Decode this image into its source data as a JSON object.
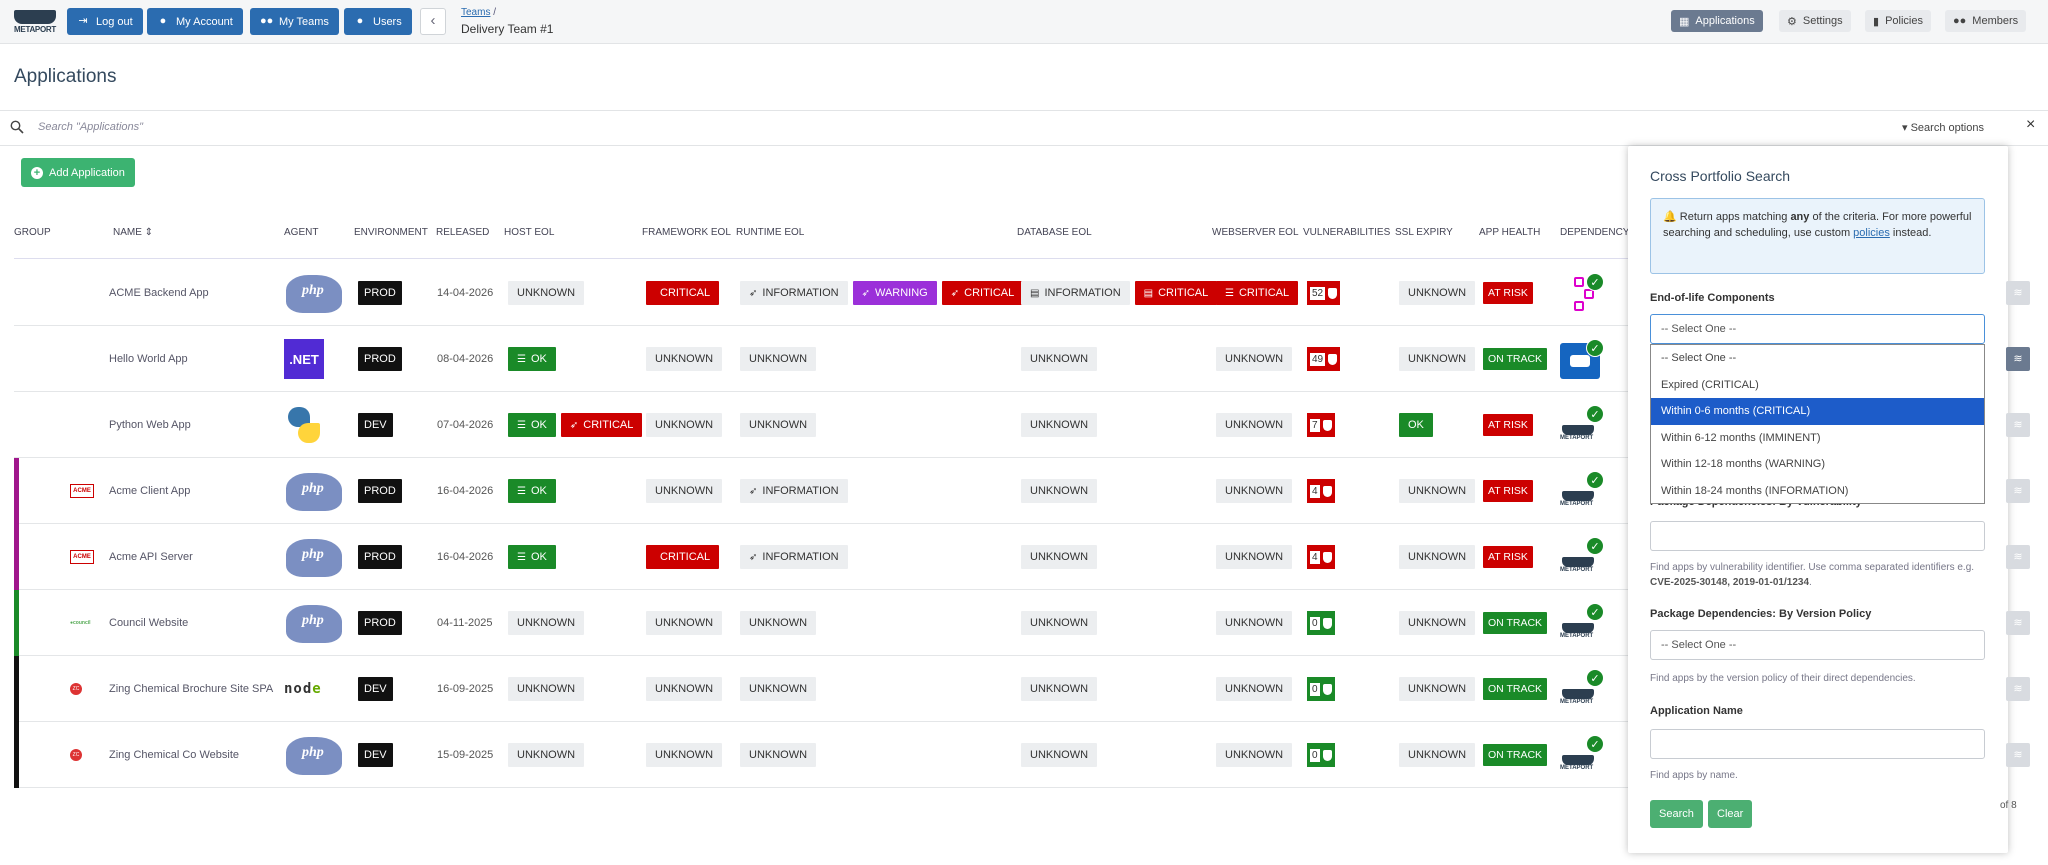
{
  "nav": {
    "logo_text": "METAPORT",
    "buttons": [
      {
        "label": "Log out",
        "icon": "logout-icon"
      },
      {
        "label": "My Account",
        "icon": "user-icon"
      },
      {
        "label": "My Teams",
        "icon": "users-icon"
      },
      {
        "label": "Users",
        "icon": "user-icon"
      }
    ],
    "breadcrumb_parent": "Teams",
    "breadcrumb_sep": " /",
    "breadcrumb_current": "Delivery Team #1",
    "tabs": [
      {
        "label": "Applications",
        "active": true
      },
      {
        "label": "Settings",
        "active": false
      },
      {
        "label": "Policies",
        "active": false
      },
      {
        "label": "Members",
        "active": false
      }
    ]
  },
  "page_title": "Applications",
  "search": {
    "placeholder": "Search \"Applications\"",
    "options_label": "Search options",
    "close": "×"
  },
  "add_button": "Add Application",
  "columns": [
    "GROUP",
    "NAME",
    "AGENT",
    "ENVIRONMENT",
    "RELEASED",
    "HOST EOL",
    "FRAMEWORK EOL",
    "RUNTIME EOL",
    "DATABASE EOL",
    "WEBSERVER EOL",
    "VULNERABILITIES",
    "SSL EXPIRY",
    "APP HEALTH",
    "DEPENDENCY S"
  ],
  "rows": [
    {
      "name": "ACME Backend App",
      "agent": "php",
      "env": "PROD",
      "released": "14-04-2026",
      "host": [
        [
          "UNKNOWN",
          "unk"
        ]
      ],
      "framework": [
        [
          "CRITICAL",
          "crit",
          "code"
        ]
      ],
      "runtime": [
        [
          "INFORMATION",
          "info",
          "rocket"
        ],
        [
          "WARNING",
          "warn",
          "rocket"
        ],
        [
          "CRITICAL",
          "crit",
          "rocket"
        ]
      ],
      "database": [
        [
          "INFORMATION",
          "info",
          "db"
        ],
        [
          "CRITICAL",
          "crit",
          "db"
        ]
      ],
      "webserver": [
        [
          "CRITICAL",
          "crit",
          "server"
        ]
      ],
      "vuln": "52",
      "vuln_color": "red",
      "ssl": "UNKNOWN",
      "health": "AT RISK",
      "group_color": "",
      "group": "",
      "dep": "pkg"
    },
    {
      "name": "Hello World App",
      "agent": "dotnet",
      "env": "PROD",
      "released": "08-04-2026",
      "host": [
        [
          "OK",
          "ok",
          "server"
        ]
      ],
      "framework": [
        [
          "UNKNOWN",
          "unk"
        ]
      ],
      "runtime": [
        [
          "UNKNOWN",
          "unk"
        ]
      ],
      "database": [
        [
          "UNKNOWN",
          "unk"
        ]
      ],
      "webserver": [
        [
          "UNKNOWN",
          "unk"
        ]
      ],
      "vuln": "49",
      "vuln_color": "red",
      "ssl": "UNKNOWN",
      "health": "ON TRACK",
      "group_color": "",
      "group": "",
      "dep": "bot"
    },
    {
      "name": "Python Web App",
      "agent": "python",
      "env": "DEV",
      "released": "07-04-2026",
      "host": [
        [
          "OK",
          "ok",
          "server"
        ],
        [
          "CRITICAL",
          "crit",
          "rocket"
        ]
      ],
      "framework": [
        [
          "UNKNOWN",
          "unk"
        ]
      ],
      "runtime": [
        [
          "UNKNOWN",
          "unk"
        ]
      ],
      "database": [
        [
          "UNKNOWN",
          "unk"
        ]
      ],
      "webserver": [
        [
          "UNKNOWN",
          "unk"
        ]
      ],
      "vuln": "7",
      "vuln_color": "red",
      "ssl": "OK",
      "health": "AT RISK",
      "group_color": "",
      "group": "",
      "dep": "meta"
    },
    {
      "name": "Acme Client App",
      "agent": "php",
      "env": "PROD",
      "released": "16-04-2026",
      "host": [
        [
          "OK",
          "ok",
          "server"
        ]
      ],
      "framework": [
        [
          "UNKNOWN",
          "unk"
        ]
      ],
      "runtime": [
        [
          "INFORMATION",
          "info",
          "rocket"
        ]
      ],
      "database": [
        [
          "UNKNOWN",
          "unk"
        ]
      ],
      "webserver": [
        [
          "UNKNOWN",
          "unk"
        ]
      ],
      "vuln": "4",
      "vuln_color": "red",
      "ssl": "UNKNOWN",
      "health": "AT RISK",
      "group_color": "#a0168c",
      "group": "ACME",
      "dep": "meta"
    },
    {
      "name": "Acme API Server",
      "agent": "php",
      "env": "PROD",
      "released": "16-04-2026",
      "host": [
        [
          "OK",
          "ok",
          "server"
        ]
      ],
      "framework": [
        [
          "CRITICAL",
          "crit",
          "code"
        ]
      ],
      "runtime": [
        [
          "INFORMATION",
          "info",
          "rocket"
        ]
      ],
      "database": [
        [
          "UNKNOWN",
          "unk"
        ]
      ],
      "webserver": [
        [
          "UNKNOWN",
          "unk"
        ]
      ],
      "vuln": "4",
      "vuln_color": "red",
      "ssl": "UNKNOWN",
      "health": "AT RISK",
      "group_color": "#a0168c",
      "group": "ACME",
      "dep": "meta"
    },
    {
      "name": "Council Website",
      "agent": "php",
      "env": "PROD",
      "released": "04-11-2025",
      "host": [
        [
          "UNKNOWN",
          "unk"
        ]
      ],
      "framework": [
        [
          "UNKNOWN",
          "unk"
        ]
      ],
      "runtime": [
        [
          "UNKNOWN",
          "unk"
        ]
      ],
      "database": [
        [
          "UNKNOWN",
          "unk"
        ]
      ],
      "webserver": [
        [
          "UNKNOWN",
          "unk"
        ]
      ],
      "vuln": "0",
      "vuln_color": "green",
      "ssl": "UNKNOWN",
      "health": "ON TRACK",
      "group_color": "#1a8a28",
      "group": "council",
      "dep": "meta"
    },
    {
      "name": "Zing Chemical Brochure Site SPA",
      "agent": "node",
      "env": "DEV",
      "released": "16-09-2025",
      "host": [
        [
          "UNKNOWN",
          "unk"
        ]
      ],
      "framework": [
        [
          "UNKNOWN",
          "unk"
        ]
      ],
      "runtime": [
        [
          "UNKNOWN",
          "unk"
        ]
      ],
      "database": [
        [
          "UNKNOWN",
          "unk"
        ]
      ],
      "webserver": [
        [
          "UNKNOWN",
          "unk"
        ]
      ],
      "vuln": "0",
      "vuln_color": "green",
      "ssl": "UNKNOWN",
      "health": "ON TRACK",
      "group_color": "#111111",
      "group": "zing",
      "dep": "meta"
    },
    {
      "name": "Zing Chemical Co Website",
      "agent": "php",
      "env": "DEV",
      "released": "15-09-2025",
      "host": [
        [
          "UNKNOWN",
          "unk"
        ]
      ],
      "framework": [
        [
          "UNKNOWN",
          "unk"
        ]
      ],
      "runtime": [
        [
          "UNKNOWN",
          "unk"
        ]
      ],
      "database": [
        [
          "UNKNOWN",
          "unk"
        ]
      ],
      "webserver": [
        [
          "UNKNOWN",
          "unk"
        ]
      ],
      "vuln": "0",
      "vuln_color": "green",
      "ssl": "UNKNOWN",
      "health": "ON TRACK",
      "group_color": "#111111",
      "group": "zing",
      "dep": "meta"
    }
  ],
  "panel": {
    "title": "Cross Portfolio Search",
    "info_pre": "Return apps matching ",
    "info_any": "any",
    "info_mid": " of the criteria. For more powerful searching and scheduling, use custom ",
    "info_link": "policies",
    "info_post": " instead.",
    "eol_label": "End-of-life Components",
    "eol_selected": "-- Select One --",
    "eol_options": [
      "-- Select One --",
      "Expired (CRITICAL)",
      "Within 0-6 months (CRITICAL)",
      "Within 6-12 months (IMMINENT)",
      "Within 12-18 months (WARNING)",
      "Within 18-24 months (INFORMATION)"
    ],
    "eol_highlighted": 2,
    "vuln_label": "Package Dependencies: By Vulnerability",
    "vuln_help_pre": "Find apps by vulnerability identifier. Use comma separated identifiers e.g. ",
    "vuln_help_example": "CVE-2025-30148, 2019-01-01/1234",
    "vuln_help_post": ".",
    "policy_label": "Package Dependencies: By Version Policy",
    "policy_selected": "-- Select One --",
    "policy_help": "Find apps by the version policy of their direct dependencies.",
    "name_label": "Application Name",
    "name_help": "Find apps by name.",
    "search_btn": "Search",
    "clear_btn": "Clear"
  },
  "paging_text": "of 8"
}
